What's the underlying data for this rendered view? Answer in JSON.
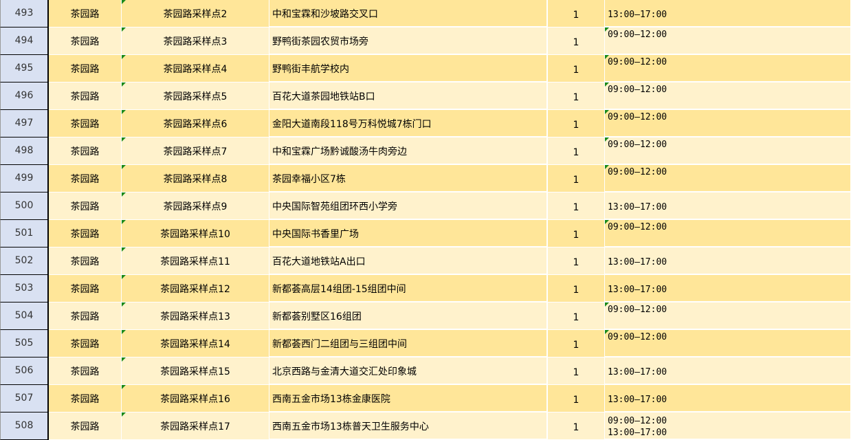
{
  "colors": {
    "row_odd": "#FFE699",
    "row_even": "#FFF2CC",
    "row_header": "#D9E1F2",
    "comment_marker": "#1a8a1a"
  },
  "rows": [
    {
      "num": "493",
      "street": "茶园路",
      "site": "茶园路采样点2",
      "address": "中和宝霖和沙坡路交叉口",
      "count": "1",
      "times": [
        "13:00—17:00"
      ]
    },
    {
      "num": "494",
      "street": "茶园路",
      "site": "茶园路采样点3",
      "address": "野鸭街茶园农贸市场旁",
      "count": "1",
      "times": [
        "09:00—12:00"
      ]
    },
    {
      "num": "495",
      "street": "茶园路",
      "site": "茶园路采样点4",
      "address": "野鸭街丰航学校内",
      "count": "1",
      "times": [
        "09:00—12:00"
      ]
    },
    {
      "num": "496",
      "street": "茶园路",
      "site": "茶园路采样点5",
      "address": "百花大道茶园地铁站B口",
      "count": "1",
      "times": [
        "09:00—12:00"
      ]
    },
    {
      "num": "497",
      "street": "茶园路",
      "site": "茶园路采样点6",
      "address": "金阳大道南段118号万科悦城7栋门口",
      "count": "1",
      "times": [
        "09:00—12:00"
      ]
    },
    {
      "num": "498",
      "street": "茶园路",
      "site": "茶园路采样点7",
      "address": "中和宝霖广场黔诚酸汤牛肉旁边",
      "count": "1",
      "times": [
        "09:00—12:00"
      ]
    },
    {
      "num": "499",
      "street": "茶园路",
      "site": "茶园路采样点8",
      "address": "茶园幸福小区7栋",
      "count": "1",
      "times": [
        "09:00—12:00"
      ]
    },
    {
      "num": "500",
      "street": "茶园路",
      "site": "茶园路采样点9",
      "address": "中央国际智苑组团环西小学旁",
      "count": "1",
      "times": [
        "13:00—17:00"
      ]
    },
    {
      "num": "501",
      "street": "茶园路",
      "site": "茶园路采样点10",
      "address": "中央国际书香里广场",
      "count": "1",
      "times": [
        "09:00—12:00"
      ]
    },
    {
      "num": "502",
      "street": "茶园路",
      "site": "茶园路采样点11",
      "address": "百花大道地铁站A出口",
      "count": "1",
      "times": [
        "13:00—17:00"
      ]
    },
    {
      "num": "503",
      "street": "茶园路",
      "site": "茶园路采样点12",
      "address": "新都荟高层14组团-15组团中间",
      "count": "1",
      "times": [
        "13:00—17:00"
      ]
    },
    {
      "num": "504",
      "street": "茶园路",
      "site": "茶园路采样点13",
      "address": "新都荟别墅区16组团",
      "count": "1",
      "times": [
        "09:00—12:00"
      ]
    },
    {
      "num": "505",
      "street": "茶园路",
      "site": "茶园路采样点14",
      "address": "新都荟西门二组团与三组团中间",
      "count": "1",
      "times": [
        "09:00—12:00"
      ]
    },
    {
      "num": "506",
      "street": "茶园路",
      "site": "茶园路采样点15",
      "address": "北京西路与金清大道交汇处印象城",
      "count": "1",
      "times": [
        "13:00—17:00"
      ]
    },
    {
      "num": "507",
      "street": "茶园路",
      "site": "茶园路采样点16",
      "address": "西南五金市场13栋金康医院",
      "count": "1",
      "times": [
        "13:00—17:00"
      ]
    },
    {
      "num": "508",
      "street": "茶园路",
      "site": "茶园路采样点17",
      "address": "西南五金市场13栋普天卫生服务中心",
      "count": "1",
      "times": [
        "09:00—12:00",
        "13:00—17:00"
      ]
    }
  ]
}
